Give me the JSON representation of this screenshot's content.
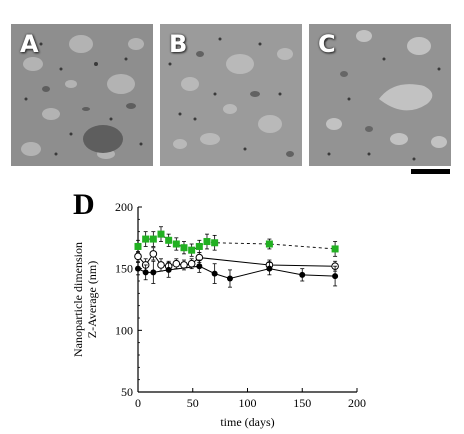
{
  "panels": [
    {
      "letter": "A",
      "tone": "#8d8d8d"
    },
    {
      "letter": "B",
      "tone": "#9a9a9a"
    },
    {
      "letter": "C",
      "tone": "#929292"
    }
  ],
  "chart_panel_letter": "D",
  "chart_data": {
    "type": "line",
    "xlabel": "time (days)",
    "ylabel": "Nanoparticle dimension\nZ-Average (nm)",
    "xlim": [
      0,
      200
    ],
    "ylim": [
      50,
      200
    ],
    "xticks": [
      0,
      50,
      100,
      150,
      200
    ],
    "yticks": [
      50,
      100,
      150,
      200
    ],
    "grid": false,
    "legend": "none",
    "series": [
      {
        "marker": "square",
        "color": "#22b022",
        "line": "dashed",
        "x": [
          0,
          7,
          14,
          21,
          28,
          35,
          42,
          49,
          56,
          63,
          70,
          120,
          180
        ],
        "y": [
          168,
          174,
          174,
          178,
          173,
          170,
          167,
          165,
          168,
          172,
          171,
          170,
          166
        ],
        "err": [
          5,
          6,
          6,
          6,
          5,
          5,
          5,
          5,
          5,
          6,
          6,
          4,
          6
        ]
      },
      {
        "marker": "open-circle",
        "color": "#000000",
        "line": "solid",
        "x": [
          0,
          7,
          14,
          21,
          28,
          35,
          42,
          49,
          56,
          120,
          180
        ],
        "y": [
          160,
          153,
          162,
          153,
          152,
          154,
          153,
          154,
          159,
          153,
          152
        ],
        "err": [
          4,
          5,
          5,
          5,
          4,
          4,
          4,
          4,
          4,
          4,
          4
        ]
      },
      {
        "marker": "filled-circle",
        "color": "#000000",
        "line": "solid",
        "x": [
          0,
          7,
          14,
          28,
          56,
          70,
          84,
          120,
          150,
          180
        ],
        "y": [
          150,
          147,
          147,
          149,
          152,
          146,
          142,
          150,
          145,
          144
        ],
        "err": [
          5,
          6,
          9,
          6,
          5,
          8,
          7,
          5,
          5,
          8
        ]
      }
    ]
  }
}
